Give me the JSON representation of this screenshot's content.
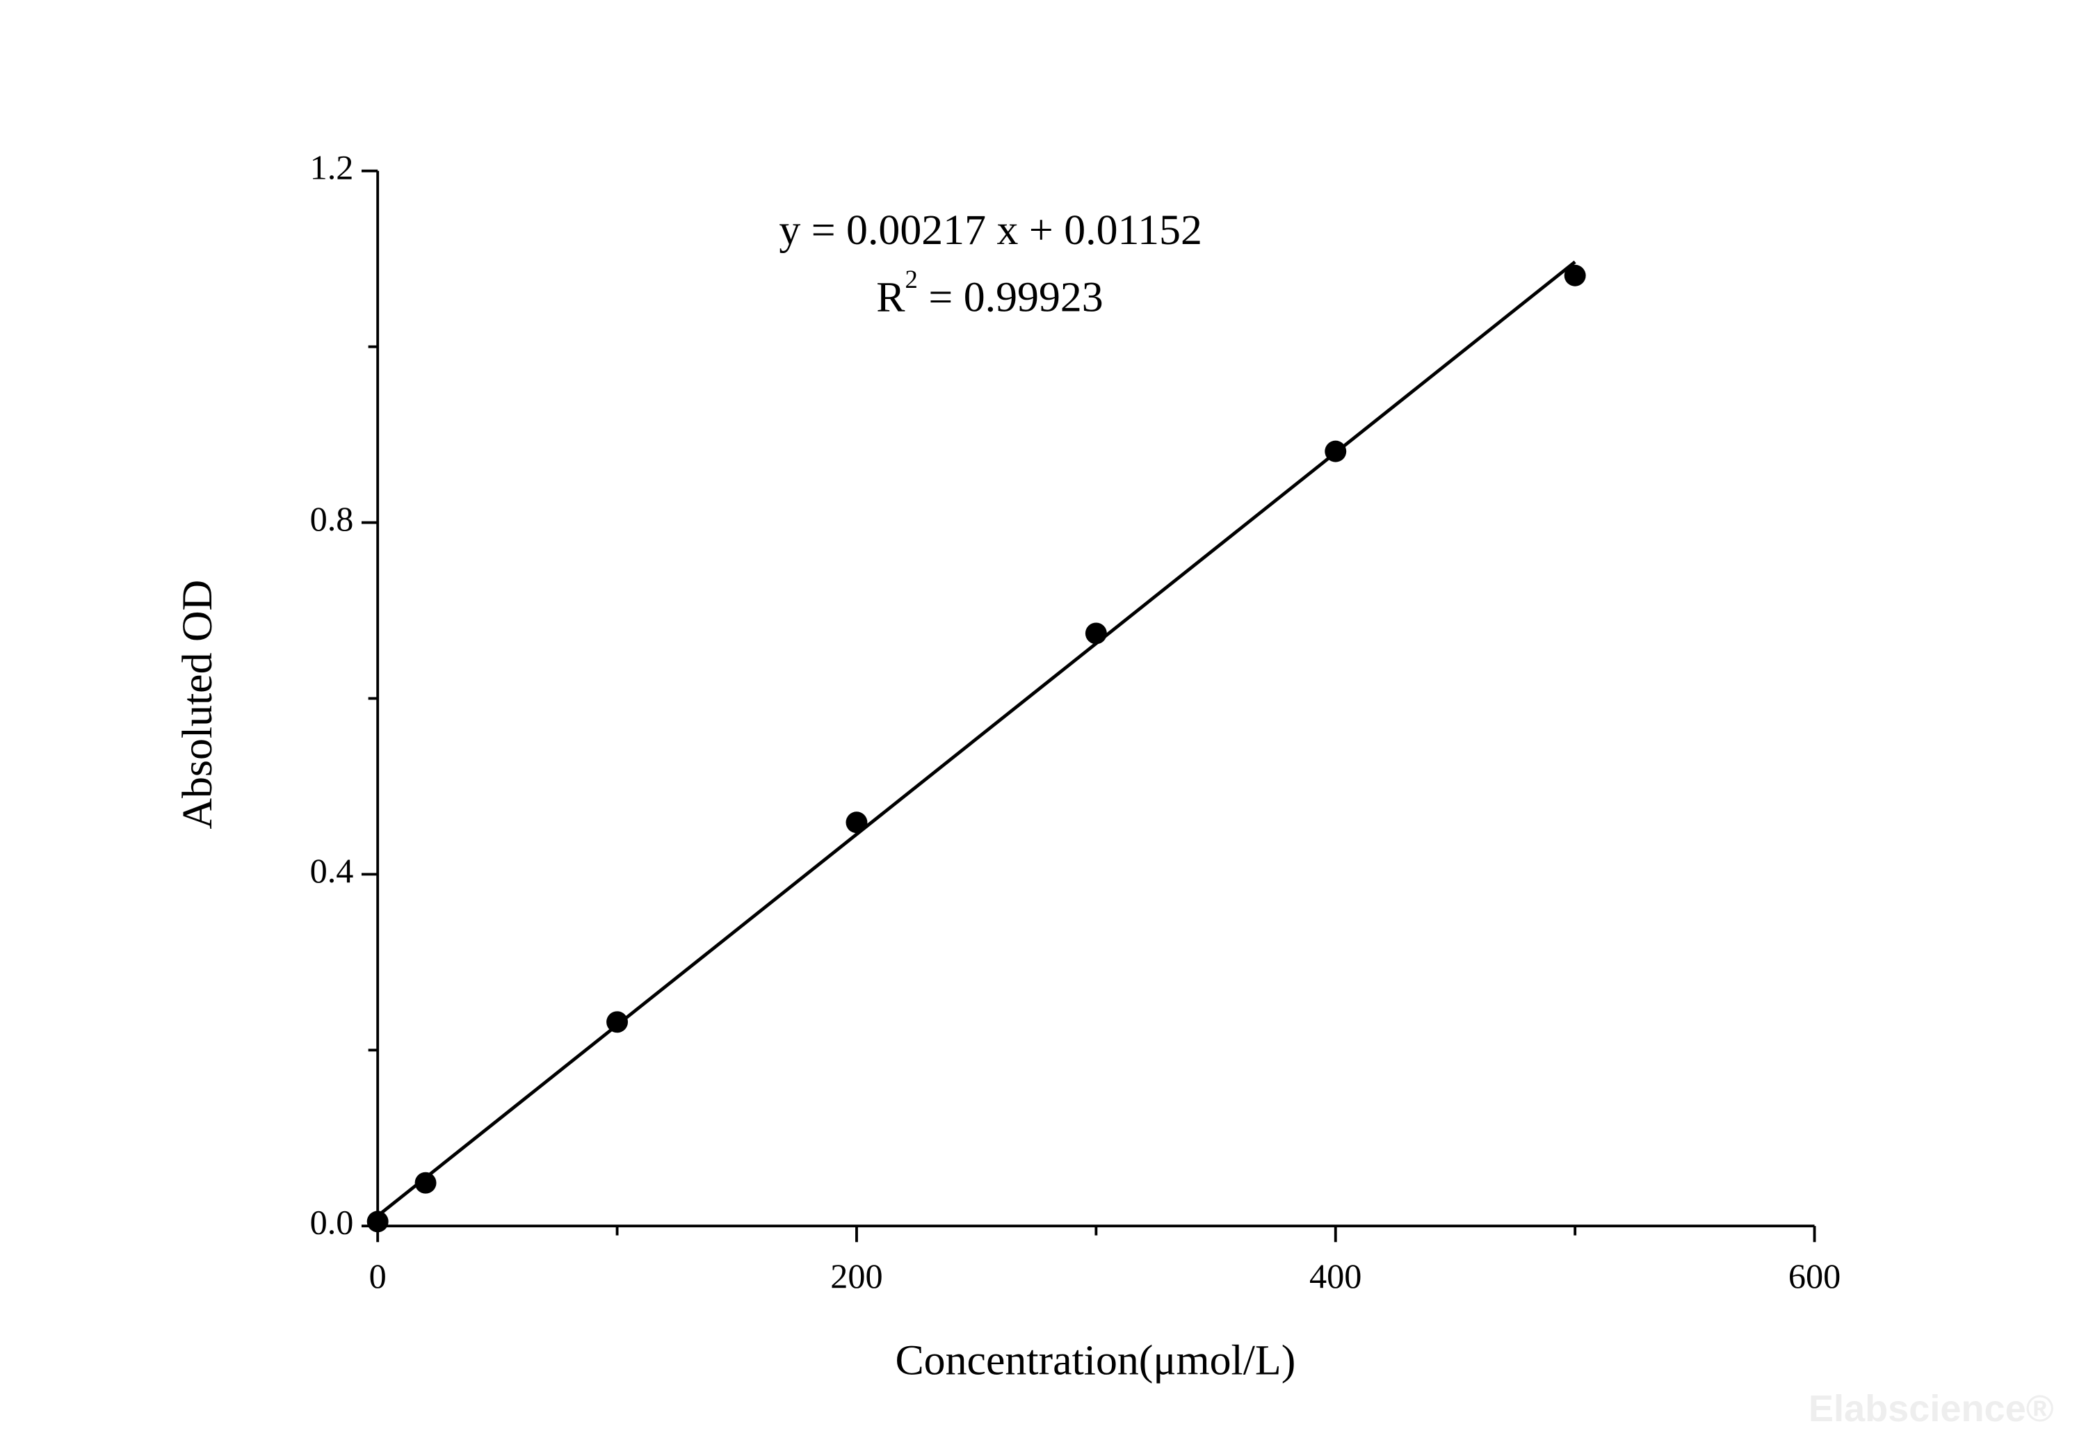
{
  "chart_data": {
    "type": "scatter",
    "x_label": "Concentration(μmol/L)",
    "y_label": "Absoluted OD",
    "x": [
      0,
      20,
      100,
      200,
      300,
      400,
      500
    ],
    "values": [
      0.005,
      0.049,
      0.232,
      0.459,
      0.674,
      0.881,
      1.081
    ],
    "color": "#000000",
    "fit_line": {
      "x": [
        0,
        500
      ],
      "values": [
        0.0115,
        1.0965
      ]
    },
    "xlim": [
      0,
      600
    ],
    "xticks": [
      0,
      200,
      400,
      600
    ],
    "xminorticks": [
      100,
      300,
      500
    ],
    "ylim": [
      0,
      1.2
    ],
    "yticks": [
      {
        "value": 0,
        "label": "0.0"
      },
      0.4,
      0.8,
      1.2
    ],
    "yminorticks": [
      0.2,
      0.6,
      1.0
    ],
    "grid": false,
    "equation": "y = 0.00217 x + 0.01152",
    "r_squared": {
      "base": "R",
      "sup": "2",
      "rest": "= 0.99923"
    },
    "watermark": "Elabscience®"
  }
}
